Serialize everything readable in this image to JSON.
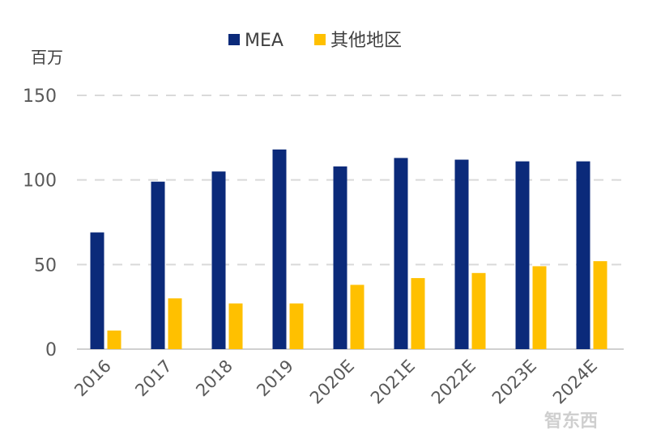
{
  "chart_data": {
    "type": "bar",
    "title": "",
    "ylabel": "百万",
    "xlabel": "",
    "ylim": [
      0,
      150
    ],
    "yticks": [
      0,
      50,
      100,
      150
    ],
    "grid": true,
    "legend_position": "top",
    "categories": [
      "2016",
      "2017",
      "2018",
      "2019",
      "2020E",
      "2021E",
      "2022E",
      "2023E",
      "2024E"
    ],
    "series": [
      {
        "name": "MEA",
        "color": "#0b2a7a",
        "values": [
          69,
          99,
          105,
          118,
          108,
          113,
          112,
          111,
          111
        ]
      },
      {
        "name": "其他地区",
        "color": "#ffc000",
        "values": [
          11,
          30,
          27,
          27,
          38,
          42,
          45,
          49,
          52
        ]
      }
    ]
  },
  "watermark": "智东西"
}
